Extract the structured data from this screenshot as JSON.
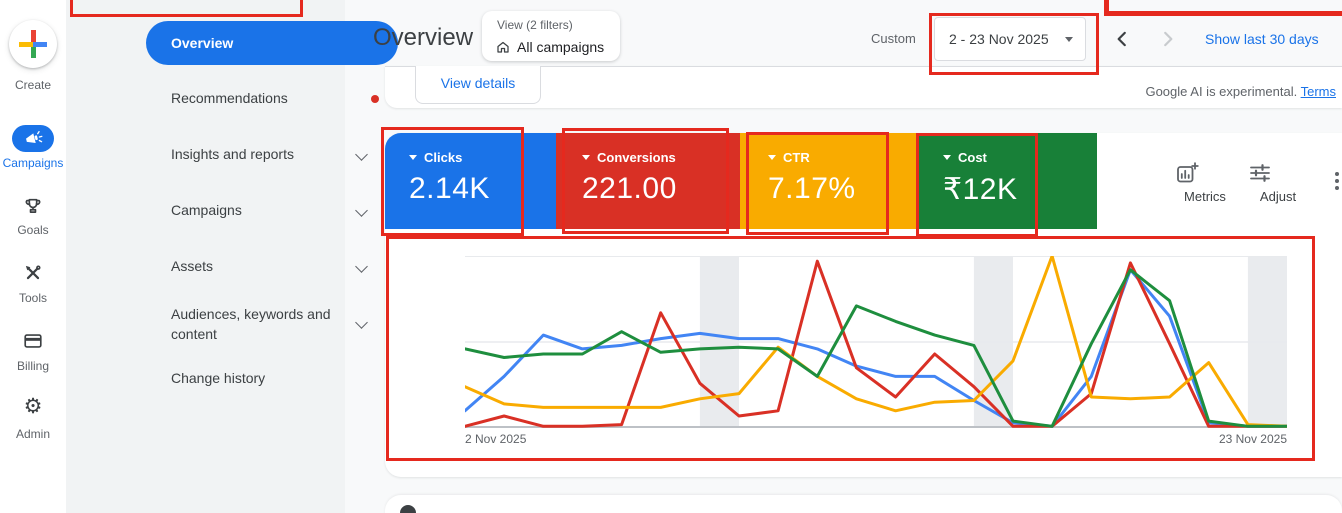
{
  "colors": {
    "accent": "#1a73e8",
    "annotation": "#e5291e",
    "nav_badge_dot": "#d93025"
  },
  "rail": {
    "items": [
      {
        "label": "Create",
        "icon": "plus-icon"
      },
      {
        "label": "Campaigns",
        "icon": "megaphone-icon",
        "selected": true
      },
      {
        "label": "Goals",
        "icon": "trophy-icon"
      },
      {
        "label": "Tools",
        "icon": "tools-icon"
      },
      {
        "label": "Billing",
        "icon": "credit-card-icon"
      },
      {
        "label": "Admin",
        "icon": "gear-icon"
      }
    ]
  },
  "nav": {
    "items": [
      {
        "label": "Overview",
        "selected": true
      },
      {
        "label": "Recommendations",
        "has_alert_dot": true
      },
      {
        "label": "Insights and reports",
        "expandable": true
      },
      {
        "label": "Campaigns",
        "expandable": true
      },
      {
        "label": "Assets",
        "expandable": true
      },
      {
        "label": "Audiences, keywords and content",
        "expandable": true
      },
      {
        "label": "Change history"
      }
    ]
  },
  "header": {
    "page_title": "Overview",
    "view_chip": {
      "line1": "View (2 filters)",
      "line2": "All campaigns",
      "icon": "home-icon"
    },
    "date_range": {
      "label": "Custom",
      "value": "2 - 23 Nov 2025"
    },
    "show_last_link": "Show last 30 days"
  },
  "summary_card": {
    "view_details_label": "View details",
    "ai_note": "Google AI is experimental.",
    "terms_link": "Terms"
  },
  "metric_cards": [
    {
      "label": "Clicks",
      "value": "2.14K",
      "color": "#1a73e8"
    },
    {
      "label": "Conversions",
      "value": "221.00",
      "color": "#d93025"
    },
    {
      "label": "CTR",
      "value": "7.17%",
      "color": "#f9ab00"
    },
    {
      "label": "Cost",
      "value": "₹12K",
      "color": "#188038"
    }
  ],
  "toolbar": {
    "metrics_label": "Metrics",
    "adjust_label": "Adjust"
  },
  "chart_data": {
    "type": "line",
    "x": [
      2,
      3,
      4,
      5,
      6,
      7,
      8,
      9,
      10,
      11,
      12,
      13,
      14,
      15,
      16,
      17,
      18,
      19,
      20,
      21,
      22,
      23
    ],
    "x_unit": "day of Nov 2025",
    "x_start_label": "2 Nov 2025",
    "x_end_label": "23 Nov 2025",
    "ylim": [
      0,
      100
    ],
    "y_note": "normalized 0-100 scale; chart displays no y-axis tick labels",
    "gridline_value": 50,
    "band_color": "#e9ebee",
    "weekend_bands": [
      [
        6,
        7
      ],
      [
        13,
        14
      ],
      [
        20,
        21
      ]
    ],
    "legend_position": "none",
    "series": [
      {
        "name": "Clicks",
        "color": "#4285f4",
        "values": [
          10,
          30,
          54,
          46,
          48,
          52,
          55,
          52,
          52,
          46,
          36,
          30,
          30,
          16,
          3,
          1,
          30,
          92,
          65,
          3,
          1,
          1
        ]
      },
      {
        "name": "Conversions",
        "color": "#d93025",
        "values": [
          1,
          7,
          1,
          1,
          2,
          67,
          26,
          7,
          10,
          97,
          35,
          18,
          43,
          24,
          1,
          1,
          20,
          96,
          49,
          1,
          1,
          1
        ]
      },
      {
        "name": "CTR",
        "color": "#f9ab00",
        "values": [
          24,
          14,
          12,
          12,
          12,
          12,
          17,
          20,
          47,
          30,
          17,
          10,
          15,
          16,
          39,
          100,
          18,
          17,
          18,
          38,
          2,
          1
        ]
      },
      {
        "name": "Cost",
        "color": "#1e8e3e",
        "values": [
          46,
          41,
          43,
          43,
          56,
          44,
          46,
          47,
          46,
          30,
          71,
          62,
          54,
          48,
          4,
          1,
          49,
          92,
          74,
          4,
          1,
          1
        ]
      }
    ]
  }
}
